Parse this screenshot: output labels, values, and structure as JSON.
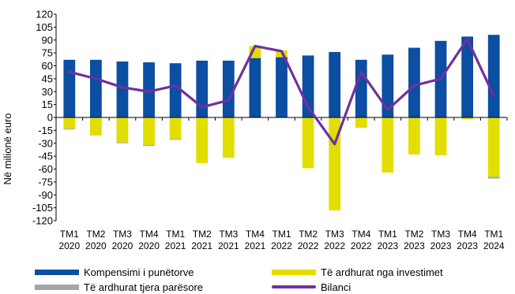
{
  "chart_data": {
    "type": "bar",
    "ylabel": "Në milionë euro",
    "ylim": [
      -120,
      120
    ],
    "ytick_step": 15,
    "categories": [
      [
        "TM1",
        "2020"
      ],
      [
        "TM2",
        "2020"
      ],
      [
        "TM3",
        "2020"
      ],
      [
        "TM4",
        "2020"
      ],
      [
        "TM1",
        "2021"
      ],
      [
        "TM2",
        "2021"
      ],
      [
        "TM3",
        "2021"
      ],
      [
        "TM4",
        "2021"
      ],
      [
        "TM1",
        "2022"
      ],
      [
        "TM2",
        "2022"
      ],
      [
        "TM3",
        "2022"
      ],
      [
        "TM4",
        "2022"
      ],
      [
        "TM1",
        "2023"
      ],
      [
        "TM2",
        "2023"
      ],
      [
        "TM3",
        "2023"
      ],
      [
        "TM4",
        "2023"
      ],
      [
        "TM1",
        "2024"
      ]
    ],
    "series": [
      {
        "name": "Kompensimi i punëtorve",
        "kind": "bar",
        "color": "#0B4EA2",
        "values": [
          67,
          67,
          65,
          64,
          63,
          66,
          66,
          69,
          70,
          72,
          76,
          67,
          73,
          81,
          89,
          94,
          96
        ]
      },
      {
        "name": "Të ardhurat nga investimet",
        "kind": "bar",
        "color": "#E2DE00",
        "values": [
          -13,
          -21,
          -29,
          -32,
          -25,
          -53,
          -47,
          14,
          8,
          -59,
          -108,
          -12,
          -64,
          -43,
          -44,
          -2,
          -69
        ]
      },
      {
        "name": "Të ardhurat tjera parësore",
        "kind": "bar",
        "color": "#A6A6A6",
        "values": [
          -1,
          0,
          -1,
          -1,
          -1,
          0,
          0,
          0,
          0,
          0,
          0,
          0,
          0,
          0,
          0,
          0,
          -2
        ]
      },
      {
        "name": "Bilanci",
        "kind": "line",
        "color": "#7030A0",
        "values": [
          53,
          45,
          35,
          30,
          37,
          12,
          20,
          83,
          77,
          12,
          -31,
          53,
          9,
          37,
          45,
          91,
          25
        ]
      }
    ],
    "legend_position": "bottom",
    "grid": false
  },
  "legend": [
    {
      "label": "Kompensimi i punëtorve",
      "color": "#0B4EA2",
      "kind": "bar"
    },
    {
      "label": "Të ardhurat nga investimet",
      "color": "#E2DE00",
      "kind": "bar"
    },
    {
      "label": "Të ardhurat tjera parësore",
      "color": "#A6A6A6",
      "kind": "bar"
    },
    {
      "label": "Bilanci",
      "color": "#7030A0",
      "kind": "line"
    }
  ]
}
